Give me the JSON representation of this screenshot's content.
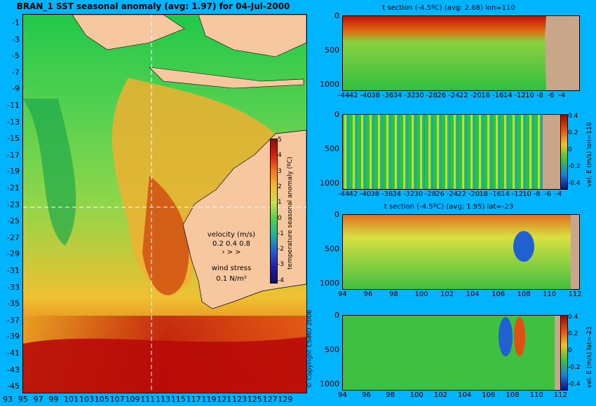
{
  "map": {
    "title": "BRAN_1  SST seasonal anomaly (avg: 1.97) for 04-Jul-2000",
    "lat_labels": [
      "-1",
      "-3",
      "-5",
      "-7",
      "-9",
      "-11",
      "-13",
      "-15",
      "-17",
      "-19",
      "-21",
      "-23",
      "-25",
      "-27",
      "-29",
      "-31",
      "-33",
      "-35",
      "-37",
      "-39",
      "-41",
      "-43",
      "-45"
    ],
    "lon_labels": [
      "93",
      "95",
      "97",
      "99",
      "101",
      "103",
      "105",
      "107",
      "109",
      "111",
      "113",
      "115",
      "117",
      "119",
      "121",
      "123",
      "125",
      "127",
      "129"
    ],
    "colorbar": {
      "label": "temperature seasonal anomaly (ºC)",
      "ticks": [
        "5",
        "4",
        "3",
        "2",
        "1",
        "0",
        "-1",
        "-2",
        "-3",
        "-4"
      ],
      "range": [
        -4,
        5
      ]
    },
    "velocity_legend": {
      "title": "velocity (m/s)",
      "values": "0.2 0.4 0.8"
    },
    "wind_legend": {
      "title": "wind stress",
      "value": "0.1 N/m²"
    },
    "copyright": "© Copyright CSIRO 2006",
    "colors": {
      "land": "#f7c8a0",
      "background": "#00b4ff"
    }
  },
  "panels": [
    {
      "title": "t section (-4.5ºC) (avg: 2.68) lon=110",
      "y_ticks": [
        "0",
        "500",
        "1000"
      ],
      "x_ticks": [
        "-44",
        "42",
        "-40",
        "38",
        "-36",
        "34",
        "-32",
        "30",
        "-28",
        "26",
        "-24",
        "22",
        "-20",
        "18",
        "-16",
        "14",
        "-12",
        "10",
        "-8",
        "-6",
        "-4"
      ]
    },
    {
      "title": "",
      "y_ticks": [
        "0",
        "500",
        "1000"
      ],
      "x_ticks": [
        "-44",
        "42",
        "-40",
        "38",
        "-36",
        "34",
        "-32",
        "30",
        "-28",
        "26",
        "-24",
        "22",
        "-20",
        "18",
        "-16",
        "14",
        "-12",
        "10",
        "-8",
        "-6",
        "-4"
      ],
      "colorbar": {
        "label": "vel. E (m/s) lon=110",
        "ticks": [
          "0.4",
          "0.2",
          "0",
          "-0.2",
          "-0.4"
        ]
      }
    },
    {
      "title": "t section (-4.5ºC) (avg: 1.95) lat=-23",
      "y_ticks": [
        "0",
        "500",
        "1000"
      ],
      "x_ticks": [
        "94",
        "96",
        "98",
        "100",
        "102",
        "104",
        "106",
        "108",
        "110",
        "112"
      ]
    },
    {
      "title": "",
      "y_ticks": [
        "0",
        "500",
        "1000"
      ],
      "x_ticks": [
        "94",
        "96",
        "98",
        "100",
        "102",
        "104",
        "106",
        "108",
        "110",
        "112"
      ],
      "colorbar": {
        "label": "vel. E (m/s) lat=-23",
        "ticks": [
          "0.4",
          "0.2",
          "0",
          "-0.2",
          "-0.4"
        ]
      }
    }
  ]
}
